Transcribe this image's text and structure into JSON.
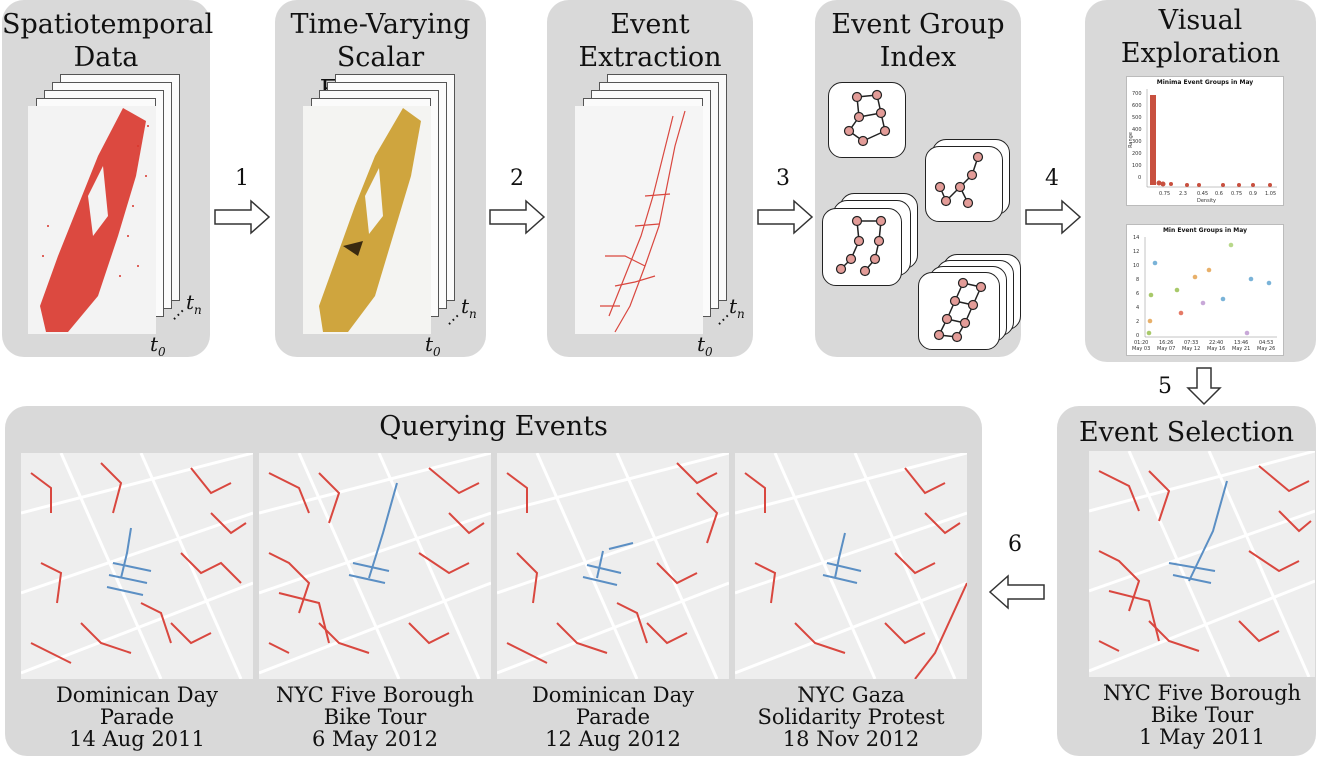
{
  "panels": {
    "spatiotemporal": {
      "title": "Spatiotemporal\nData",
      "t0": "t",
      "tn": "t",
      "sub0": "0",
      "subn": "n"
    },
    "scalar": {
      "title": "Time-Varying\nScalar Function",
      "t0": "t",
      "tn": "t",
      "sub0": "0",
      "subn": "n"
    },
    "extraction": {
      "title": "Event\nExtraction",
      "t0": "t",
      "tn": "t",
      "sub0": "0",
      "subn": "n"
    },
    "index": {
      "title": "Event Group\nIndex"
    },
    "exploration": {
      "title": "Visual\nExploration"
    },
    "querying": {
      "title": "Querying Events"
    },
    "selection": {
      "title": "Event Selection"
    }
  },
  "steps": [
    "1",
    "2",
    "3",
    "4",
    "5",
    "6"
  ],
  "charts": [
    {
      "title": "Minima Event Groups in May",
      "ylabel": "Range",
      "xlabel": "Density",
      "yticks": [
        "700",
        "600",
        "500",
        "400",
        "300",
        "200",
        "100",
        "0"
      ],
      "xticks": [
        "0.75",
        "2.3",
        "0.45",
        "0.6",
        "0.75",
        "0.9",
        "1.05"
      ]
    },
    {
      "title": "Min Event Groups in May",
      "yticks": [
        "14",
        "12",
        "10",
        "8",
        "6",
        "4",
        "2",
        "0"
      ],
      "xticks": [
        "01:20\nMay 03",
        "16:26\nMay 07",
        "07:33\nMay 12",
        "22:40\nMay 16",
        "13:46\nMay 21",
        "04:53\nMay 26"
      ]
    }
  ],
  "query_captions": [
    "Dominican Day\nParade\n14 Aug 2011",
    "NYC Five Borough\nBike Tour\n6 May 2012",
    "Dominican Day\nParade\n12 Aug 2012",
    "NYC Gaza\nSolidarity Protest\n18 Nov 2012"
  ],
  "selection_caption": "NYC Five Borough\nBike Tour\n1 May 2011",
  "colors": {
    "panel": "#d9d9d9",
    "event_red": "#d9473f",
    "event_blue": "#5b8fc4",
    "scalar_gold": "#c8961e",
    "node": "#e39c98"
  }
}
